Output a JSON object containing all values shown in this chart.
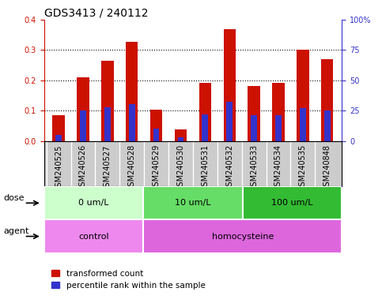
{
  "title": "GDS3413 / 240112",
  "categories": [
    "GSM240525",
    "GSM240526",
    "GSM240527",
    "GSM240528",
    "GSM240529",
    "GSM240530",
    "GSM240531",
    "GSM240532",
    "GSM240533",
    "GSM240534",
    "GSM240535",
    "GSM240848"
  ],
  "red_values": [
    0.085,
    0.21,
    0.265,
    0.328,
    0.102,
    0.038,
    0.192,
    0.368,
    0.182,
    0.192,
    0.3,
    0.27
  ],
  "blue_values_pct": [
    5,
    25,
    28,
    30,
    10,
    3,
    22,
    32,
    21,
    21,
    27,
    25
  ],
  "ylim_left": [
    0,
    0.4
  ],
  "ylim_right": [
    0,
    100
  ],
  "yticks_left": [
    0,
    0.1,
    0.2,
    0.3,
    0.4
  ],
  "yticks_right": [
    0,
    25,
    50,
    75,
    100
  ],
  "ytick_labels_right": [
    "0",
    "25",
    "50",
    "75",
    "100%"
  ],
  "dose_groups": [
    {
      "label": "0 um/L",
      "start": 0,
      "end": 4,
      "color": "#ccffcc"
    },
    {
      "label": "10 um/L",
      "start": 4,
      "end": 8,
      "color": "#66dd66"
    },
    {
      "label": "100 um/L",
      "start": 8,
      "end": 12,
      "color": "#33bb33"
    }
  ],
  "agent_groups": [
    {
      "label": "control",
      "start": 0,
      "end": 4,
      "color": "#ee88ee"
    },
    {
      "label": "homocysteine",
      "start": 4,
      "end": 12,
      "color": "#dd66dd"
    }
  ],
  "bar_width": 0.5,
  "blue_bar_width": 0.25,
  "red_color": "#cc1100",
  "blue_color": "#3333cc",
  "xtick_bg": "#cccccc",
  "bg_color": "#ffffff",
  "legend_red": "transformed count",
  "legend_blue": "percentile rank within the sample",
  "dose_label": "dose",
  "agent_label": "agent",
  "title_fontsize": 10,
  "tick_fontsize": 7,
  "label_fontsize": 8
}
